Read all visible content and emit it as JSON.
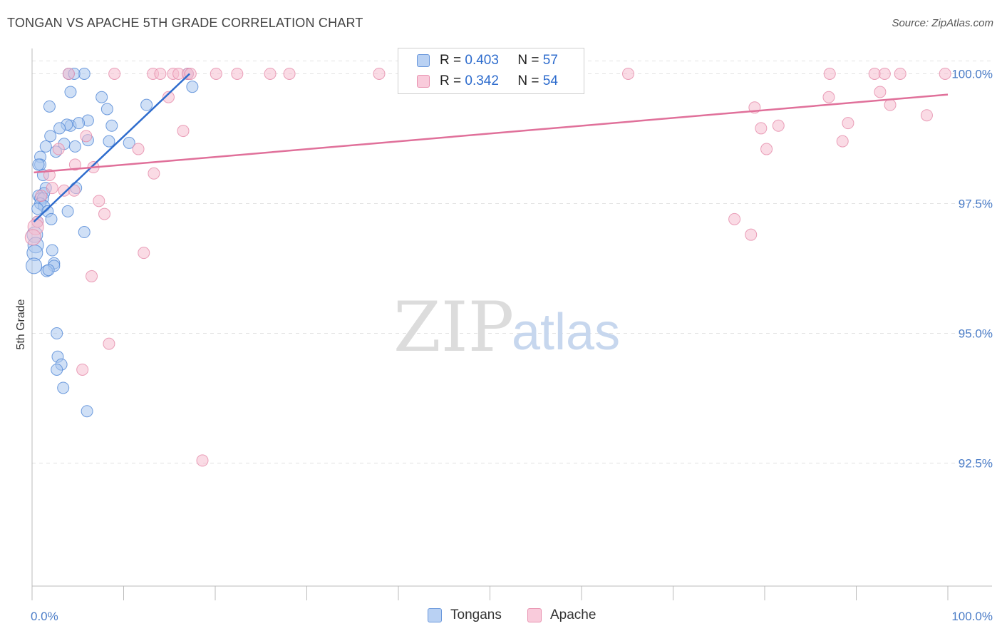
{
  "title": "TONGAN VS APACHE 5TH GRADE CORRELATION CHART",
  "source": "Source: ZipAtlas.com",
  "watermark": {
    "zip": "ZIP",
    "atlas": "atlas"
  },
  "legend": {
    "rows": [
      {
        "r_label": "R =",
        "r_value": "0.403",
        "n_label": "N =",
        "n_value": "57"
      },
      {
        "r_label": "R =",
        "r_value": "0.342",
        "n_label": "N =",
        "n_value": "54"
      }
    ]
  },
  "bottom_legend": {
    "tongans": "Tongans",
    "apache": "Apache"
  },
  "colors": {
    "tongans_fill": "#a9c6ee",
    "tongans_stroke": "#4f86d6",
    "tongans_line": "#2e6ccd",
    "apache_fill": "#f6bdd0",
    "apache_stroke": "#e58aa9",
    "apache_line": "#e0709a",
    "tick_text": "#4a7cc7",
    "grid": "#e2e2e2"
  },
  "chart_data": {
    "type": "scatter",
    "title": "TONGAN VS APACHE 5TH GRADE CORRELATION CHART",
    "xlabel": "",
    "ylabel": "5th Grade",
    "xlim": [
      0,
      100
    ],
    "ylim": [
      90.2,
      100.35
    ],
    "x_tick_labels": [
      "0.0%",
      "100.0%"
    ],
    "y_ticks": [
      92.5,
      95.0,
      97.5,
      100.0
    ],
    "y_tick_labels": [
      "92.5%",
      "95.0%",
      "97.5%",
      "100.0%"
    ],
    "grid": true,
    "legend_placement": "top-center",
    "series": [
      {
        "name": "Tongans",
        "r": 0.403,
        "n": 57,
        "trend": {
          "x": [
            0.2,
            17.2
          ],
          "y": [
            97.15,
            100.0
          ]
        },
        "points": [
          [
            4.0,
            100.0
          ],
          [
            5.7,
            100.0
          ],
          [
            4.6,
            100.0
          ],
          [
            17.5,
            99.75
          ],
          [
            4.2,
            99.65
          ],
          [
            7.6,
            99.55
          ],
          [
            12.5,
            99.4
          ],
          [
            1.9,
            99.37
          ],
          [
            8.2,
            99.32
          ],
          [
            6.1,
            99.1
          ],
          [
            4.2,
            99.0
          ],
          [
            3.8,
            99.02
          ],
          [
            5.1,
            99.05
          ],
          [
            8.7,
            99.0
          ],
          [
            3.0,
            98.95
          ],
          [
            2.0,
            98.8
          ],
          [
            6.1,
            98.72
          ],
          [
            8.4,
            98.7
          ],
          [
            10.6,
            98.67
          ],
          [
            3.5,
            98.65
          ],
          [
            1.5,
            98.6
          ],
          [
            4.7,
            98.6
          ],
          [
            2.6,
            98.5
          ],
          [
            0.9,
            98.4
          ],
          [
            0.9,
            98.25
          ],
          [
            0.7,
            98.25
          ],
          [
            1.2,
            98.05
          ],
          [
            1.5,
            97.8
          ],
          [
            4.8,
            97.8
          ],
          [
            1.3,
            97.7
          ],
          [
            0.7,
            97.65
          ],
          [
            0.9,
            97.6
          ],
          [
            1.2,
            97.6
          ],
          [
            0.9,
            97.5
          ],
          [
            1.3,
            97.45
          ],
          [
            0.6,
            97.4
          ],
          [
            1.7,
            97.35
          ],
          [
            3.9,
            97.35
          ],
          [
            2.1,
            97.2
          ],
          [
            0.6,
            97.15
          ],
          [
            5.7,
            96.95
          ],
          [
            0.3,
            96.9
          ],
          [
            0.4,
            96.7
          ],
          [
            2.2,
            96.6
          ],
          [
            0.3,
            96.55
          ],
          [
            2.4,
            96.35
          ],
          [
            2.4,
            96.3
          ],
          [
            0.2,
            96.3
          ],
          [
            1.6,
            96.2
          ],
          [
            1.8,
            96.22
          ],
          [
            2.7,
            95.0
          ],
          [
            2.8,
            94.55
          ],
          [
            3.2,
            94.4
          ],
          [
            2.7,
            94.3
          ],
          [
            3.4,
            93.95
          ],
          [
            6.0,
            93.5
          ],
          [
            17.0,
            100.0
          ]
        ]
      },
      {
        "name": "Apache",
        "r": 0.342,
        "n": 54,
        "trend": {
          "x": [
            0.2,
            100.0
          ],
          "y": [
            98.1,
            99.6
          ]
        },
        "points": [
          [
            4.0,
            100.0
          ],
          [
            9.0,
            100.0
          ],
          [
            13.2,
            100.0
          ],
          [
            14.0,
            100.0
          ],
          [
            15.4,
            100.0
          ],
          [
            16.0,
            100.0
          ],
          [
            17.0,
            100.0
          ],
          [
            17.3,
            100.0
          ],
          [
            20.1,
            100.0
          ],
          [
            22.4,
            100.0
          ],
          [
            26.0,
            100.0
          ],
          [
            28.1,
            100.0
          ],
          [
            37.9,
            100.0
          ],
          [
            65.1,
            100.0
          ],
          [
            87.1,
            100.0
          ],
          [
            92.0,
            100.0
          ],
          [
            93.1,
            100.0
          ],
          [
            94.8,
            100.0
          ],
          [
            99.7,
            100.0
          ],
          [
            92.6,
            99.65
          ],
          [
            14.9,
            99.55
          ],
          [
            87.0,
            99.55
          ],
          [
            78.9,
            99.35
          ],
          [
            93.7,
            99.4
          ],
          [
            97.7,
            99.2
          ],
          [
            81.5,
            99.0
          ],
          [
            79.6,
            98.95
          ],
          [
            89.1,
            99.05
          ],
          [
            16.5,
            98.9
          ],
          [
            5.9,
            98.8
          ],
          [
            88.5,
            98.7
          ],
          [
            2.9,
            98.55
          ],
          [
            11.6,
            98.55
          ],
          [
            80.2,
            98.55
          ],
          [
            4.7,
            98.25
          ],
          [
            6.7,
            98.2
          ],
          [
            13.3,
            98.08
          ],
          [
            1.9,
            98.05
          ],
          [
            2.2,
            97.8
          ],
          [
            3.5,
            97.75
          ],
          [
            4.6,
            97.75
          ],
          [
            1.0,
            97.65
          ],
          [
            7.3,
            97.55
          ],
          [
            7.9,
            97.3
          ],
          [
            76.7,
            97.2
          ],
          [
            0.6,
            97.15
          ],
          [
            0.4,
            97.05
          ],
          [
            0.1,
            96.85
          ],
          [
            78.5,
            96.9
          ],
          [
            12.2,
            96.55
          ],
          [
            6.5,
            96.1
          ],
          [
            8.4,
            94.8
          ],
          [
            5.5,
            94.3
          ],
          [
            18.6,
            92.55
          ]
        ]
      }
    ]
  }
}
